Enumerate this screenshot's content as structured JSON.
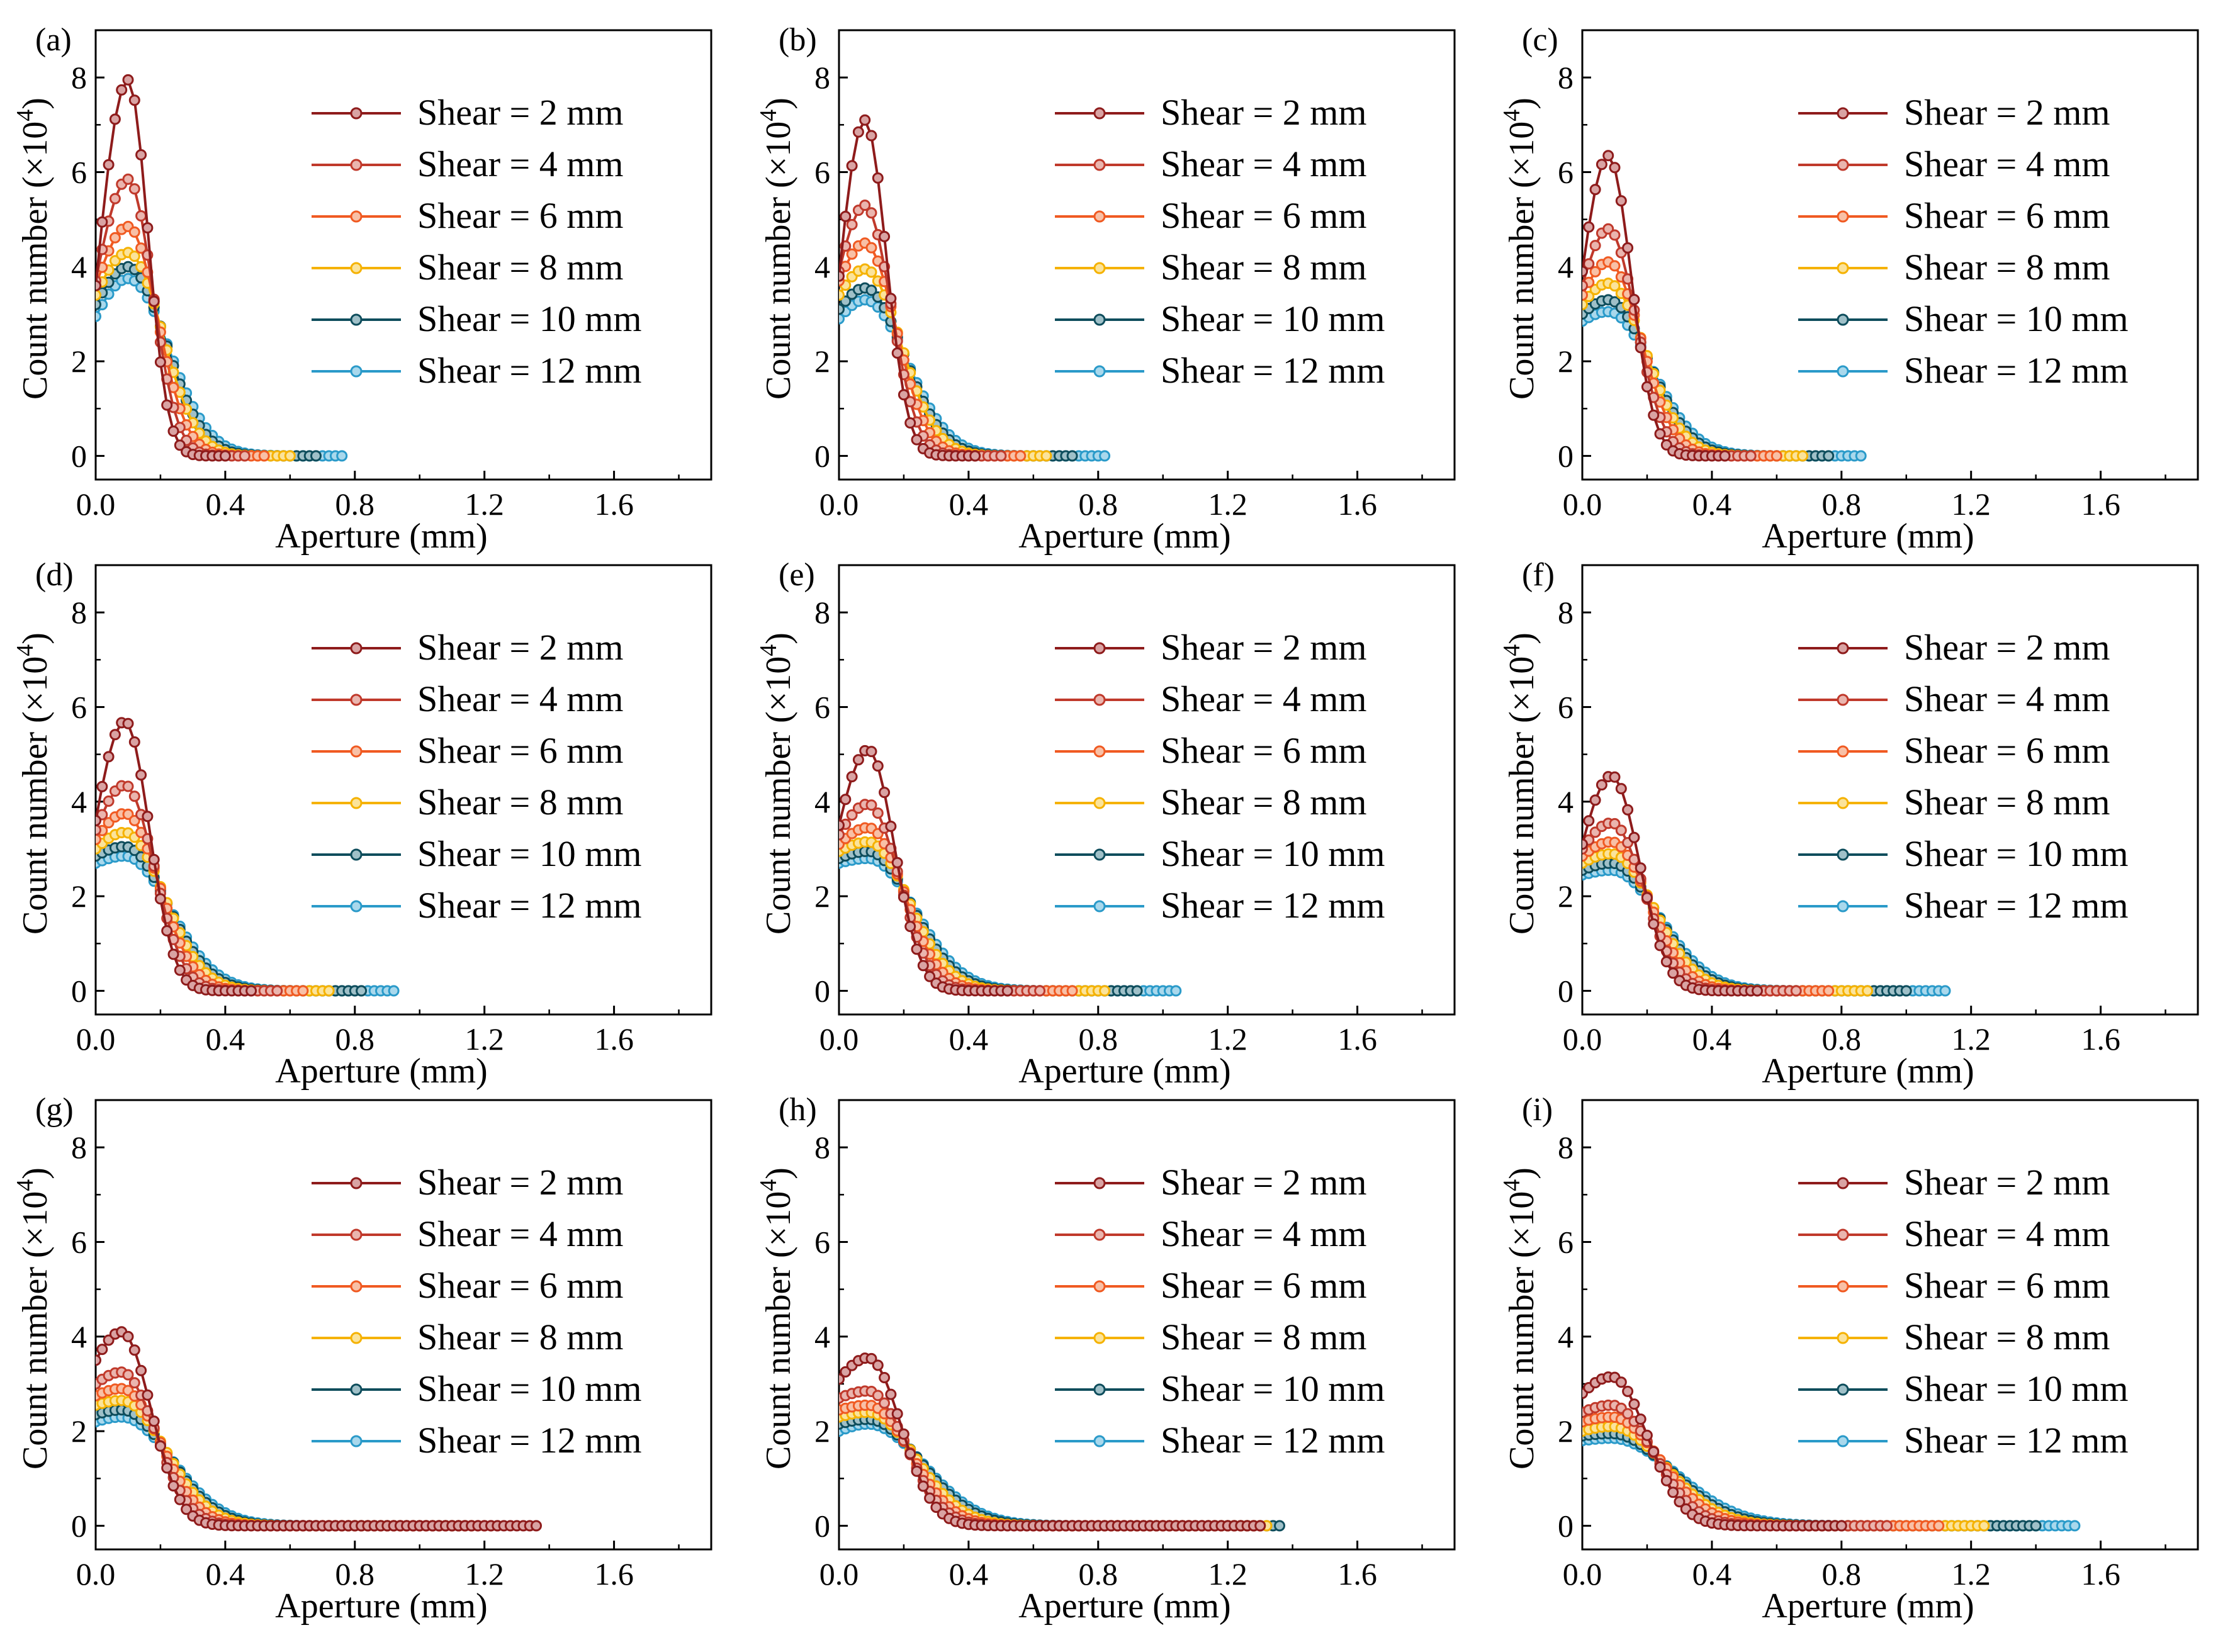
{
  "figure": {
    "common": {
      "type": "line",
      "xlabel": "Aperture (mm)",
      "ylabel_main": "Count number (",
      "ylabel_times": "×10",
      "ylabel_exp": "4",
      "ylabel_close": ")",
      "xlim": [
        0.0,
        1.9
      ],
      "ylim": [
        -0.5,
        9.0
      ],
      "xticks": [
        0.0,
        0.4,
        0.8,
        1.2,
        1.6
      ],
      "xtick_labels": [
        "0.0",
        "0.4",
        "0.8",
        "1.2",
        "1.6"
      ],
      "yticks": [
        0,
        2,
        4,
        6,
        8
      ],
      "ytick_labels": [
        "0",
        "2",
        "4",
        "6",
        "8"
      ],
      "legend_position": "top-right"
    },
    "series_styles": [
      {
        "name": "Shear = 2 mm",
        "color": "#8e1b1b",
        "marker_fill": "#d9a3a3"
      },
      {
        "name": "Shear = 4 mm",
        "color": "#c0392b",
        "marker_fill": "#eab5ae"
      },
      {
        "name": "Shear = 6 mm",
        "color": "#f05a22",
        "marker_fill": "#f8c0a6"
      },
      {
        "name": "Shear = 8 mm",
        "color": "#f5b200",
        "marker_fill": "#fbe39a"
      },
      {
        "name": "Shear = 10 mm",
        "color": "#0e4d5c",
        "marker_fill": "#9fc0c8"
      },
      {
        "name": "Shear = 12 mm",
        "color": "#2a9ac9",
        "marker_fill": "#a9d8ec"
      }
    ]
  },
  "chart_data": [
    {
      "label": "(a)",
      "type": "line",
      "x_max": 0.76,
      "series": [
        {
          "name": "Shear = 2 mm",
          "peak": 7.95,
          "mode": 0.1,
          "y0": 3.6,
          "sigma_r": 0.06,
          "x_end": 0.4
        },
        {
          "name": "Shear = 4 mm",
          "peak": 5.85,
          "mode": 0.1,
          "y0": 3.7,
          "sigma_r": 0.075,
          "x_end": 0.46
        },
        {
          "name": "Shear = 6 mm",
          "peak": 4.85,
          "mode": 0.1,
          "y0": 3.6,
          "sigma_r": 0.09,
          "x_end": 0.52
        },
        {
          "name": "Shear = 8 mm",
          "peak": 4.3,
          "mode": 0.1,
          "y0": 3.4,
          "sigma_r": 0.105,
          "x_end": 0.6
        },
        {
          "name": "Shear = 10 mm",
          "peak": 4.0,
          "mode": 0.1,
          "y0": 3.2,
          "sigma_r": 0.115,
          "x_end": 0.68
        },
        {
          "name": "Shear = 12 mm",
          "peak": 3.75,
          "mode": 0.1,
          "y0": 2.95,
          "sigma_r": 0.125,
          "x_end": 0.76
        }
      ]
    },
    {
      "label": "(b)",
      "type": "line",
      "x_max": 0.82,
      "series": [
        {
          "name": "Shear = 2 mm",
          "peak": 7.1,
          "mode": 0.08,
          "y0": 3.8,
          "sigma_r": 0.065,
          "x_end": 0.42
        },
        {
          "name": "Shear = 4 mm",
          "peak": 5.3,
          "mode": 0.08,
          "y0": 3.9,
          "sigma_r": 0.08,
          "x_end": 0.5
        },
        {
          "name": "Shear = 6 mm",
          "peak": 4.5,
          "mode": 0.08,
          "y0": 3.7,
          "sigma_r": 0.095,
          "x_end": 0.56
        },
        {
          "name": "Shear = 8 mm",
          "peak": 3.95,
          "mode": 0.08,
          "y0": 3.4,
          "sigma_r": 0.11,
          "x_end": 0.64
        },
        {
          "name": "Shear = 10 mm",
          "peak": 3.55,
          "mode": 0.08,
          "y0": 3.1,
          "sigma_r": 0.12,
          "x_end": 0.72
        },
        {
          "name": "Shear = 12 mm",
          "peak": 3.3,
          "mode": 0.08,
          "y0": 2.9,
          "sigma_r": 0.13,
          "x_end": 0.82
        }
      ]
    },
    {
      "label": "(c)",
      "type": "line",
      "x_max": 0.87,
      "series": [
        {
          "name": "Shear = 2 mm",
          "peak": 6.35,
          "mode": 0.08,
          "y0": 3.9,
          "sigma_r": 0.07,
          "x_end": 0.44
        },
        {
          "name": "Shear = 4 mm",
          "peak": 4.8,
          "mode": 0.08,
          "y0": 3.6,
          "sigma_r": 0.085,
          "x_end": 0.52
        },
        {
          "name": "Shear = 6 mm",
          "peak": 4.1,
          "mode": 0.08,
          "y0": 3.4,
          "sigma_r": 0.1,
          "x_end": 0.6
        },
        {
          "name": "Shear = 8 mm",
          "peak": 3.65,
          "mode": 0.08,
          "y0": 3.2,
          "sigma_r": 0.115,
          "x_end": 0.68
        },
        {
          "name": "Shear = 10 mm",
          "peak": 3.3,
          "mode": 0.08,
          "y0": 3.0,
          "sigma_r": 0.125,
          "x_end": 0.77
        },
        {
          "name": "Shear = 12 mm",
          "peak": 3.05,
          "mode": 0.08,
          "y0": 2.85,
          "sigma_r": 0.135,
          "x_end": 0.87
        }
      ]
    },
    {
      "label": "(d)",
      "type": "line",
      "x_max": 0.93,
      "series": [
        {
          "name": "Shear = 2 mm",
          "peak": 5.7,
          "mode": 0.09,
          "y0": 3.6,
          "sigma_r": 0.075,
          "x_end": 0.48
        },
        {
          "name": "Shear = 4 mm",
          "peak": 4.35,
          "mode": 0.09,
          "y0": 3.4,
          "sigma_r": 0.09,
          "x_end": 0.56
        },
        {
          "name": "Shear = 6 mm",
          "peak": 3.75,
          "mode": 0.09,
          "y0": 3.2,
          "sigma_r": 0.105,
          "x_end": 0.64
        },
        {
          "name": "Shear = 8 mm",
          "peak": 3.35,
          "mode": 0.09,
          "y0": 3.0,
          "sigma_r": 0.12,
          "x_end": 0.72
        },
        {
          "name": "Shear = 10 mm",
          "peak": 3.05,
          "mode": 0.09,
          "y0": 2.85,
          "sigma_r": 0.13,
          "x_end": 0.82
        },
        {
          "name": "Shear = 12 mm",
          "peak": 2.85,
          "mode": 0.09,
          "y0": 2.7,
          "sigma_r": 0.14,
          "x_end": 0.93
        }
      ]
    },
    {
      "label": "(e)",
      "type": "line",
      "x_max": 1.04,
      "series": [
        {
          "name": "Shear = 2 mm",
          "peak": 5.1,
          "mode": 0.09,
          "y0": 3.5,
          "sigma_r": 0.08,
          "x_end": 0.52
        },
        {
          "name": "Shear = 4 mm",
          "peak": 3.95,
          "mode": 0.09,
          "y0": 3.3,
          "sigma_r": 0.095,
          "x_end": 0.62
        },
        {
          "name": "Shear = 6 mm",
          "peak": 3.45,
          "mode": 0.09,
          "y0": 3.1,
          "sigma_r": 0.11,
          "x_end": 0.72
        },
        {
          "name": "Shear = 8 mm",
          "peak": 3.15,
          "mode": 0.09,
          "y0": 2.95,
          "sigma_r": 0.125,
          "x_end": 0.82
        },
        {
          "name": "Shear = 10 mm",
          "peak": 2.95,
          "mode": 0.09,
          "y0": 2.8,
          "sigma_r": 0.135,
          "x_end": 0.93
        },
        {
          "name": "Shear = 12 mm",
          "peak": 2.8,
          "mode": 0.09,
          "y0": 2.7,
          "sigma_r": 0.145,
          "x_end": 1.04
        }
      ]
    },
    {
      "label": "(f)",
      "type": "line",
      "x_max": 1.13,
      "series": [
        {
          "name": "Shear = 2 mm",
          "peak": 4.55,
          "mode": 0.09,
          "y0": 3.1,
          "sigma_r": 0.085,
          "x_end": 0.55
        },
        {
          "name": "Shear = 4 mm",
          "peak": 3.55,
          "mode": 0.09,
          "y0": 3.0,
          "sigma_r": 0.1,
          "x_end": 0.66
        },
        {
          "name": "Shear = 6 mm",
          "peak": 3.15,
          "mode": 0.09,
          "y0": 2.85,
          "sigma_r": 0.115,
          "x_end": 0.77
        },
        {
          "name": "Shear = 8 mm",
          "peak": 2.9,
          "mode": 0.09,
          "y0": 2.7,
          "sigma_r": 0.13,
          "x_end": 0.88
        },
        {
          "name": "Shear = 10 mm",
          "peak": 2.7,
          "mode": 0.09,
          "y0": 2.55,
          "sigma_r": 0.14,
          "x_end": 1.0
        },
        {
          "name": "Shear = 12 mm",
          "peak": 2.55,
          "mode": 0.09,
          "y0": 2.45,
          "sigma_r": 0.15,
          "x_end": 1.13
        }
      ]
    },
    {
      "label": "(g)",
      "type": "line",
      "x_max": 1.37,
      "series": [
        {
          "name": "Shear = 2 mm",
          "peak": 4.1,
          "mode": 0.08,
          "y0": 3.5,
          "sigma_r": 0.09,
          "x_end": 1.37
        },
        {
          "name": "Shear = 4 mm",
          "peak": 3.25,
          "mode": 0.08,
          "y0": 3.0,
          "sigma_r": 0.105,
          "x_end": 1.25
        },
        {
          "name": "Shear = 6 mm",
          "peak": 2.9,
          "mode": 0.08,
          "y0": 2.75,
          "sigma_r": 0.12,
          "x_end": 1.2
        },
        {
          "name": "Shear = 8 mm",
          "peak": 2.65,
          "mode": 0.08,
          "y0": 2.55,
          "sigma_r": 0.135,
          "x_end": 1.16
        },
        {
          "name": "Shear = 10 mm",
          "peak": 2.45,
          "mode": 0.08,
          "y0": 2.35,
          "sigma_r": 0.145,
          "x_end": 1.14
        },
        {
          "name": "Shear = 12 mm",
          "peak": 2.3,
          "mode": 0.08,
          "y0": 2.2,
          "sigma_r": 0.155,
          "x_end": 1.13
        }
      ]
    },
    {
      "label": "(h)",
      "type": "line",
      "x_max": 1.37,
      "series": [
        {
          "name": "Shear = 2 mm",
          "peak": 3.55,
          "mode": 0.09,
          "y0": 3.1,
          "sigma_r": 0.1,
          "x_end": 1.3
        },
        {
          "name": "Shear = 4 mm",
          "peak": 2.85,
          "mode": 0.09,
          "y0": 2.7,
          "sigma_r": 0.115,
          "x_end": 1.3
        },
        {
          "name": "Shear = 6 mm",
          "peak": 2.55,
          "mode": 0.09,
          "y0": 2.45,
          "sigma_r": 0.13,
          "x_end": 1.3
        },
        {
          "name": "Shear = 8 mm",
          "peak": 2.4,
          "mode": 0.09,
          "y0": 2.3,
          "sigma_r": 0.145,
          "x_end": 1.32
        },
        {
          "name": "Shear = 10 mm",
          "peak": 2.25,
          "mode": 0.09,
          "y0": 2.15,
          "sigma_r": 0.16,
          "x_end": 1.37
        },
        {
          "name": "Shear = 12 mm",
          "peak": 2.15,
          "mode": 0.09,
          "y0": 2.0,
          "sigma_r": 0.17,
          "x_end": 1.26
        }
      ]
    },
    {
      "label": "(i)",
      "type": "line",
      "x_max": 1.52,
      "series": [
        {
          "name": "Shear = 2 mm",
          "peak": 3.15,
          "mode": 0.09,
          "y0": 2.8,
          "sigma_r": 0.11,
          "x_end": 0.8
        },
        {
          "name": "Shear = 4 mm",
          "peak": 2.55,
          "mode": 0.09,
          "y0": 2.4,
          "sigma_r": 0.13,
          "x_end": 0.95
        },
        {
          "name": "Shear = 6 mm",
          "peak": 2.3,
          "mode": 0.09,
          "y0": 2.2,
          "sigma_r": 0.15,
          "x_end": 1.1
        },
        {
          "name": "Shear = 8 mm",
          "peak": 2.1,
          "mode": 0.09,
          "y0": 2.0,
          "sigma_r": 0.165,
          "x_end": 1.25
        },
        {
          "name": "Shear = 10 mm",
          "peak": 1.95,
          "mode": 0.09,
          "y0": 1.9,
          "sigma_r": 0.18,
          "x_end": 1.4
        },
        {
          "name": "Shear = 12 mm",
          "peak": 1.85,
          "mode": 0.09,
          "y0": 1.8,
          "sigma_r": 0.195,
          "x_end": 1.52
        }
      ]
    }
  ]
}
